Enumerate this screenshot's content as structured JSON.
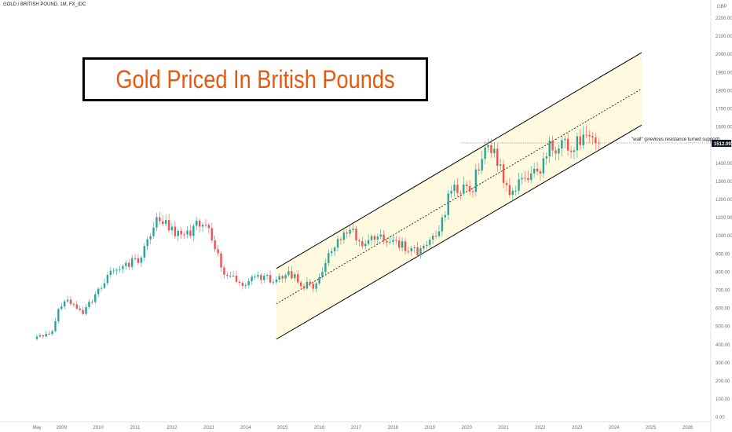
{
  "symbol_title": "GOLD / BRITISH POUND, 1M, FX_IDC",
  "banner_text": "Gold Priced In British Pounds",
  "annotation": "\"wall\" (previous resistance turned support)",
  "colors": {
    "up": "#26a69a",
    "down": "#ef5350",
    "channel_fill": "#fff8dc",
    "banner_text": "#e8590c"
  },
  "chart_data": {
    "type": "candlestick",
    "title": "GOLD / BRITISH POUND, 1M, FX_IDC",
    "currency": "GBP",
    "y_scale": "log",
    "y_ticks": [
      "0.00",
      "100.00",
      "200.00",
      "300.00",
      "400.00",
      "500.00",
      "600.00",
      "700.00",
      "800.00",
      "900.00",
      "1000.00",
      "1100.00",
      "1200.00",
      "1300.00",
      "1400.00",
      "1500.00",
      "1600.00",
      "1700.00",
      "1800.00",
      "1900.00",
      "2000.00",
      "2100.00",
      "2200.00"
    ],
    "x_ticks": [
      "May",
      "2009",
      "2010",
      "2011",
      "2012",
      "2013",
      "2014",
      "2015",
      "2016",
      "2017",
      "2018",
      "2019",
      "2020",
      "2021",
      "2022",
      "2023",
      "2024",
      "2025",
      "2026"
    ],
    "last_price": "1512.09",
    "close_path": [
      {
        "date": "2008-05",
        "close": 448
      },
      {
        "date": "2008-10",
        "close": 470
      },
      {
        "date": "2008-12",
        "close": 590
      },
      {
        "date": "2009-03",
        "close": 650
      },
      {
        "date": "2009-08",
        "close": 570
      },
      {
        "date": "2009-12",
        "close": 680
      },
      {
        "date": "2010-06",
        "close": 830
      },
      {
        "date": "2010-10",
        "close": 840
      },
      {
        "date": "2011-03",
        "close": 880
      },
      {
        "date": "2011-08",
        "close": 1100
      },
      {
        "date": "2011-10",
        "close": 1070
      },
      {
        "date": "2012-05",
        "close": 980
      },
      {
        "date": "2012-10",
        "close": 1080
      },
      {
        "date": "2013-01",
        "close": 1060
      },
      {
        "date": "2013-06",
        "close": 780
      },
      {
        "date": "2013-12",
        "close": 740
      },
      {
        "date": "2014-06",
        "close": 770
      },
      {
        "date": "2014-12",
        "close": 760
      },
      {
        "date": "2015-03",
        "close": 800
      },
      {
        "date": "2015-08",
        "close": 730
      },
      {
        "date": "2015-12",
        "close": 720
      },
      {
        "date": "2016-06",
        "close": 960
      },
      {
        "date": "2016-10",
        "close": 1040
      },
      {
        "date": "2017-03",
        "close": 970
      },
      {
        "date": "2017-08",
        "close": 1010
      },
      {
        "date": "2018-03",
        "close": 950
      },
      {
        "date": "2018-09",
        "close": 920
      },
      {
        "date": "2019-03",
        "close": 990
      },
      {
        "date": "2019-08",
        "close": 1250
      },
      {
        "date": "2020-03",
        "close": 1280
      },
      {
        "date": "2020-08",
        "close": 1520
      },
      {
        "date": "2020-10",
        "close": 1460
      },
      {
        "date": "2021-03",
        "close": 1230
      },
      {
        "date": "2021-08",
        "close": 1310
      },
      {
        "date": "2022-01",
        "close": 1350
      },
      {
        "date": "2022-04",
        "close": 1480
      },
      {
        "date": "2022-09",
        "close": 1500
      },
      {
        "date": "2022-12",
        "close": 1500
      },
      {
        "date": "2023-04",
        "close": 1590
      },
      {
        "date": "2023-08",
        "close": 1512
      }
    ],
    "channel": {
      "upper": [
        {
          "date": "2014-11",
          "price": 820
        },
        {
          "date": "2024-10",
          "price": 2010
        }
      ],
      "lower": [
        {
          "date": "2014-11",
          "price": 430
        },
        {
          "date": "2024-10",
          "price": 1610
        }
      ]
    },
    "support_level": 1512
  }
}
